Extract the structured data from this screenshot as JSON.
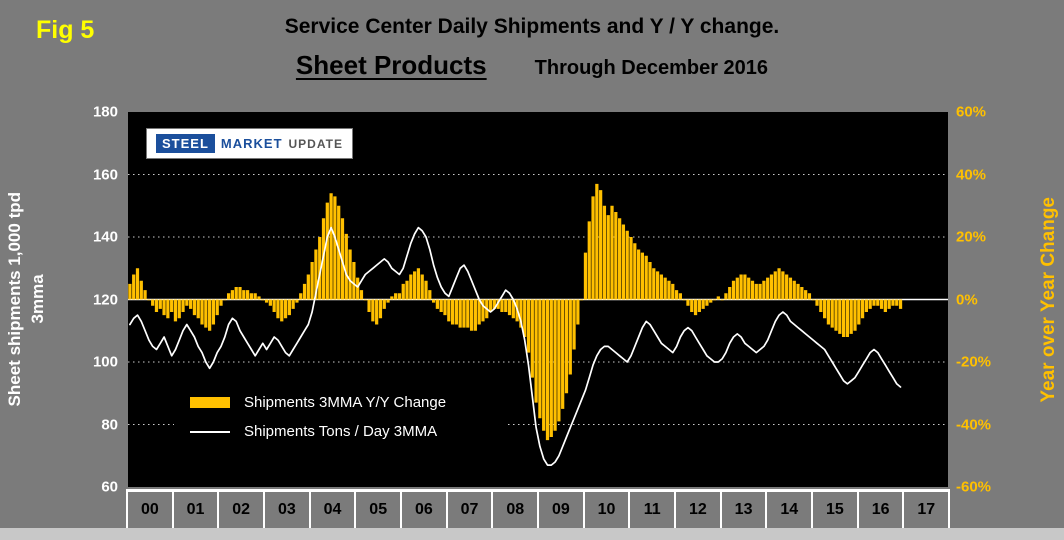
{
  "figure_label": "Fig 5",
  "header": {
    "title": "Service Center Daily Shipments and Y / Y change.",
    "subtitle_main": "Sheet Products",
    "subtitle_right": "Through December 2016"
  },
  "logo": {
    "word1": "STEEL",
    "word2": "MARKET",
    "word3": "UPDATE"
  },
  "colors": {
    "background": "#7b7b7b",
    "plot_background": "#000000",
    "bar": "#ffc000",
    "line": "#ffffff",
    "left_axis_text": "#ffffff",
    "right_axis_text": "#ffc000",
    "figure_label_text": "#ffff00",
    "title_text": "#000000",
    "x_label_text": "#000000"
  },
  "chart_data": {
    "type": "bar+line combo",
    "title": "Service Center Daily Shipments and Y / Y change. Sheet Products Through December 2016",
    "left_axis": {
      "label_line1": "Sheet shipments 1,000 tpd",
      "label_line2": "3mma",
      "range": [
        60,
        180
      ],
      "tick_step": 20,
      "ticks": [
        180,
        160,
        140,
        120,
        100,
        80,
        60
      ]
    },
    "right_axis": {
      "label": "Year over Year Change",
      "range": [
        -60,
        60
      ],
      "tick_step": 20,
      "format": "percent",
      "ticks_percent": [
        60,
        40,
        20,
        0,
        -20,
        -40,
        -60
      ]
    },
    "x_axis": {
      "year_labels": [
        "00",
        "01",
        "02",
        "03",
        "04",
        "05",
        "06",
        "07",
        "08",
        "09",
        "10",
        "11",
        "12",
        "13",
        "14",
        "15",
        "16",
        "17"
      ],
      "months_per_year": 12,
      "data_start": "Jan 2000",
      "data_end": "Dec 2016"
    },
    "grid": "horizontal dotted white on black",
    "legend_position": "inside lower-left",
    "series": [
      {
        "name": "Shipments 3MMA Y/Y Change",
        "type": "bar",
        "axis": "right",
        "unit": "%",
        "color": "#ffc000",
        "values": [
          5,
          8,
          10,
          6,
          3,
          0,
          -2,
          -4,
          -3,
          -5,
          -6,
          -4,
          -7,
          -6,
          -4,
          -2,
          -3,
          -5,
          -6,
          -8,
          -9,
          -10,
          -8,
          -5,
          -2,
          0,
          2,
          3,
          4,
          4,
          3,
          3,
          2,
          2,
          1,
          0,
          -1,
          -2,
          -4,
          -6,
          -7,
          -6,
          -5,
          -3,
          -1,
          2,
          5,
          8,
          12,
          16,
          20,
          26,
          31,
          34,
          33,
          30,
          26,
          21,
          16,
          12,
          7,
          3,
          0,
          -4,
          -7,
          -8,
          -6,
          -3,
          -1,
          1,
          2,
          2,
          5,
          6,
          8,
          9,
          10,
          8,
          6,
          3,
          -1,
          -3,
          -4,
          -5,
          -7,
          -8,
          -8,
          -9,
          -9,
          -9,
          -10,
          -10,
          -8,
          -7,
          -6,
          -4,
          -3,
          -3,
          -4,
          -4,
          -5,
          -6,
          -7,
          -9,
          -12,
          -17,
          -25,
          -33,
          -38,
          -42,
          -45,
          -44,
          -42,
          -39,
          -35,
          -30,
          -24,
          -16,
          -8,
          0,
          15,
          25,
          33,
          37,
          35,
          30,
          27,
          30,
          28,
          26,
          24,
          22,
          20,
          18,
          16,
          15,
          14,
          12,
          10,
          9,
          8,
          7,
          6,
          5,
          3,
          2,
          0,
          -2,
          -4,
          -5,
          -4,
          -3,
          -2,
          -1,
          0,
          1,
          0,
          2,
          4,
          6,
          7,
          8,
          8,
          7,
          6,
          5,
          5,
          6,
          7,
          8,
          9,
          10,
          9,
          8,
          7,
          6,
          5,
          4,
          3,
          2,
          0,
          -2,
          -4,
          -6,
          -8,
          -9,
          -10,
          -11,
          -12,
          -12,
          -11,
          -10,
          -8,
          -6,
          -4,
          -3,
          -2,
          -2,
          -3,
          -4,
          -3,
          -2,
          -2,
          -3
        ]
      },
      {
        "name": "Shipments Tons / Day 3MMA",
        "type": "line",
        "axis": "left",
        "unit": "1,000 tpd",
        "color": "#ffffff",
        "values": [
          112,
          114,
          115,
          113,
          110,
          107,
          105,
          104,
          106,
          108,
          105,
          102,
          104,
          107,
          110,
          112,
          110,
          108,
          105,
          103,
          100,
          98,
          100,
          103,
          105,
          108,
          112,
          114,
          113,
          110,
          108,
          106,
          104,
          102,
          104,
          106,
          104,
          106,
          108,
          107,
          105,
          103,
          102,
          104,
          106,
          108,
          110,
          112,
          116,
          122,
          128,
          134,
          140,
          143,
          140,
          136,
          132,
          128,
          126,
          125,
          124,
          126,
          128,
          129,
          130,
          131,
          132,
          133,
          132,
          130,
          129,
          128,
          130,
          134,
          138,
          141,
          143,
          142,
          140,
          136,
          131,
          127,
          124,
          122,
          121,
          124,
          127,
          130,
          131,
          129,
          126,
          123,
          120,
          118,
          117,
          116,
          117,
          119,
          121,
          123,
          122,
          120,
          117,
          113,
          107,
          99,
          89,
          79,
          73,
          69,
          67,
          67,
          68,
          70,
          73,
          76,
          79,
          82,
          85,
          88,
          91,
          95,
          99,
          102,
          104,
          105,
          105,
          104,
          103,
          102,
          101,
          100,
          102,
          105,
          108,
          111,
          113,
          112,
          110,
          108,
          106,
          105,
          104,
          103,
          105,
          108,
          110,
          111,
          110,
          108,
          106,
          104,
          102,
          101,
          100,
          100,
          101,
          103,
          106,
          108,
          109,
          108,
          106,
          105,
          104,
          103,
          104,
          105,
          107,
          110,
          113,
          115,
          116,
          115,
          113,
          112,
          111,
          110,
          109,
          108,
          107,
          106,
          105,
          104,
          102,
          100,
          98,
          96,
          94,
          93,
          94,
          95,
          97,
          99,
          101,
          103,
          104,
          103,
          101,
          99,
          97,
          95,
          93,
          92
        ]
      }
    ]
  }
}
